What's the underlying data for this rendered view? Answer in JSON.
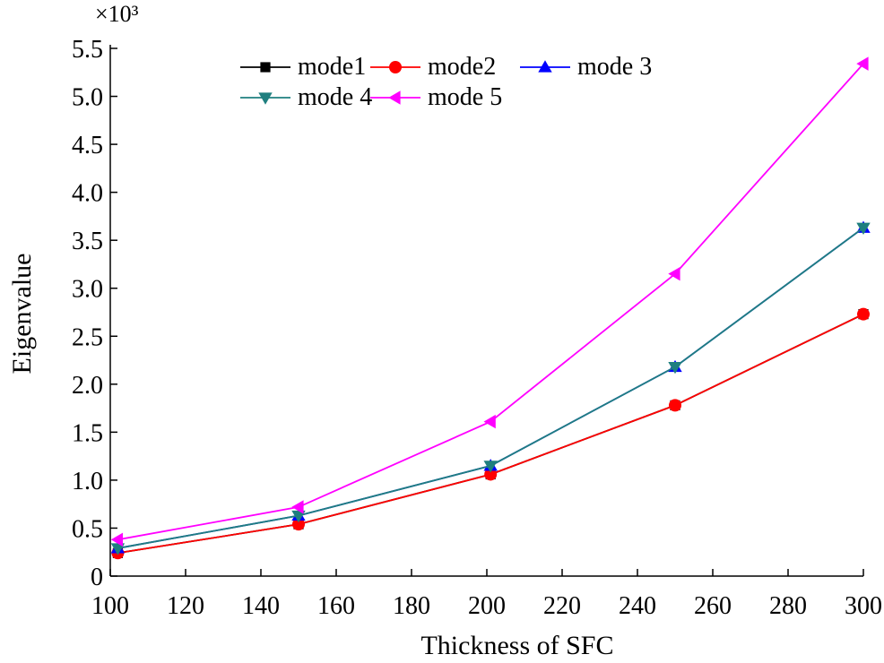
{
  "chart_data": {
    "type": "line",
    "title": "",
    "xlabel": "Thickness of SFC",
    "ylabel": "Eigenvalue",
    "multiplier_label": "×10³",
    "xlim": [
      100,
      300
    ],
    "ylim": [
      0,
      5.5
    ],
    "xticks": [
      100,
      120,
      140,
      160,
      180,
      200,
      220,
      240,
      260,
      280,
      300
    ],
    "yticks": [
      {
        "v": 0,
        "label": "0"
      },
      {
        "v": 0.5,
        "label": "0.5"
      },
      {
        "v": 1.0,
        "label": "1.0"
      },
      {
        "v": 1.5,
        "label": "1.5"
      },
      {
        "v": 2.0,
        "label": "2.0"
      },
      {
        "v": 2.5,
        "label": "2.5"
      },
      {
        "v": 3.0,
        "label": "3.0"
      },
      {
        "v": 3.5,
        "label": "3.5"
      },
      {
        "v": 4.0,
        "label": "4.0"
      },
      {
        "v": 4.5,
        "label": "4.5"
      },
      {
        "v": 5.0,
        "label": "5.0"
      },
      {
        "v": 5.5,
        "label": "5.5"
      }
    ],
    "x": [
      102,
      150,
      201,
      250,
      300
    ],
    "legend_position": "top",
    "series": [
      {
        "name": "mode1",
        "color": "#000000",
        "marker": "square",
        "values": [
          0.24,
          0.54,
          1.06,
          1.78,
          2.73
        ]
      },
      {
        "name": "mode2",
        "color": "#ff0000",
        "marker": "circle",
        "values": [
          0.24,
          0.54,
          1.06,
          1.78,
          2.73
        ]
      },
      {
        "name": "mode 3",
        "color": "#0000ff",
        "marker": "triangle-up",
        "values": [
          0.29,
          0.63,
          1.15,
          2.18,
          3.63
        ]
      },
      {
        "name": "mode 4",
        "color": "#1f7f7f",
        "marker": "triangle-down",
        "values": [
          0.29,
          0.63,
          1.15,
          2.18,
          3.63
        ]
      },
      {
        "name": "mode 5",
        "color": "#ff00ff",
        "marker": "triangle-left",
        "values": [
          0.38,
          0.72,
          1.61,
          3.15,
          5.34
        ]
      }
    ]
  }
}
